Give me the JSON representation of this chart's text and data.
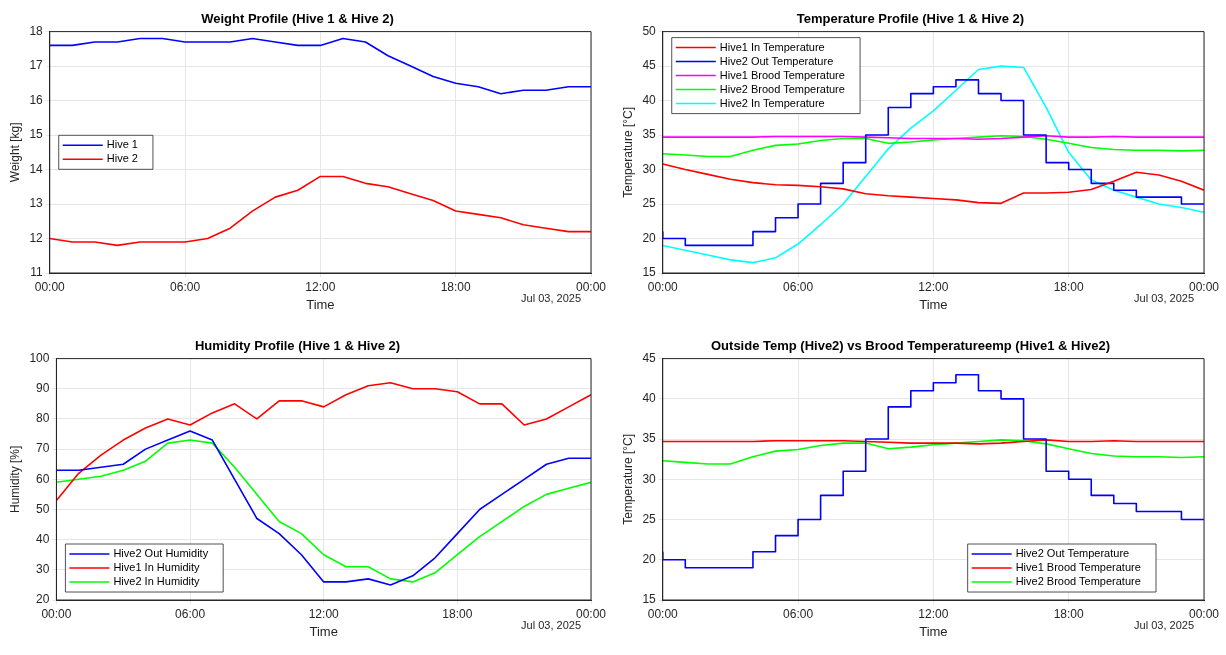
{
  "chart_data": [
    {
      "type": "line",
      "title": "Weight Profile (Hive 1 & Hive 2)",
      "xlabel": "Time",
      "ylabel": "Weight [kg]",
      "annotations": [
        "Jul 03, 2025"
      ],
      "marker": "none",
      "grid": true,
      "legend": "left",
      "x": [
        0,
        1,
        2,
        3,
        4,
        5,
        6,
        7,
        8,
        9,
        10,
        11,
        12,
        13,
        14,
        15,
        16,
        17,
        18,
        19,
        20,
        21,
        22,
        23,
        24
      ],
      "xlim": [
        0,
        24
      ],
      "xticks": [
        {
          "value": 0,
          "label": "00:00"
        },
        {
          "value": 6,
          "label": "06:00"
        },
        {
          "value": 12,
          "label": "12:00"
        },
        {
          "value": 18,
          "label": "18:00"
        },
        {
          "value": 24,
          "label": "00:00"
        }
      ],
      "ylim": [
        11,
        18
      ],
      "yticks": [
        11,
        12,
        13,
        14,
        15,
        16,
        17,
        18
      ],
      "series": [
        {
          "name": "Hive 1",
          "color": "#0000ff",
          "values": [
            17.6,
            17.6,
            17.7,
            17.7,
            17.8,
            17.8,
            17.7,
            17.7,
            17.7,
            17.8,
            17.7,
            17.6,
            17.6,
            17.8,
            17.7,
            17.3,
            17.0,
            16.7,
            16.5,
            16.4,
            16.2,
            16.3,
            16.3,
            16.4,
            16.4
          ]
        },
        {
          "name": "Hive 2",
          "color": "#ff0000",
          "values": [
            12.0,
            11.9,
            11.9,
            11.8,
            11.9,
            11.9,
            11.9,
            12.0,
            12.3,
            12.8,
            13.2,
            13.4,
            13.8,
            13.8,
            13.6,
            13.5,
            13.3,
            13.1,
            12.8,
            12.7,
            12.6,
            12.4,
            12.3,
            12.2,
            12.2
          ]
        }
      ]
    },
    {
      "type": "line",
      "title": "Temperature Profile (Hive 1 & Hive 2)",
      "xlabel": "Time",
      "ylabel": "Temperature [°C]",
      "annotations": [
        "Jul 03, 2025"
      ],
      "marker": "none",
      "grid": true,
      "legend": "top left",
      "x": [
        0,
        1,
        2,
        3,
        4,
        5,
        6,
        7,
        8,
        9,
        10,
        11,
        12,
        13,
        14,
        15,
        16,
        17,
        18,
        19,
        20,
        21,
        22,
        23,
        24
      ],
      "xlim": [
        0,
        24
      ],
      "xticks": [
        {
          "value": 0,
          "label": "00:00"
        },
        {
          "value": 6,
          "label": "06:00"
        },
        {
          "value": 12,
          "label": "12:00"
        },
        {
          "value": 18,
          "label": "18:00"
        },
        {
          "value": 24,
          "label": "00:00"
        }
      ],
      "ylim": [
        15,
        50
      ],
      "yticks": [
        15,
        20,
        25,
        30,
        35,
        40,
        45,
        50
      ],
      "series": [
        {
          "name": "Hive1 In Temperature",
          "color": "#ff0000",
          "values": [
            30.8,
            30.0,
            29.3,
            28.6,
            28.1,
            27.8,
            27.7,
            27.5,
            27.2,
            26.5,
            26.2,
            26.0,
            25.8,
            25.6,
            25.2,
            25.1,
            26.6,
            26.6,
            26.7,
            27.1,
            28.3,
            29.6,
            29.2,
            28.3,
            27.0
          ]
        },
        {
          "name": "Hive2 Out Temperature",
          "type": "step",
          "color": "#0000ff",
          "values": [
            21,
            20,
            19,
            19,
            19,
            21,
            23,
            25,
            28,
            31,
            35,
            39,
            41,
            42,
            43,
            41,
            40,
            35,
            31,
            30,
            28,
            27,
            26,
            26,
            25
          ]
        },
        {
          "name": "Hive1 Brood Temperature",
          "color": "#ff00ff",
          "values": [
            34.7,
            34.7,
            34.7,
            34.7,
            34.7,
            34.8,
            34.8,
            34.8,
            34.8,
            34.7,
            34.6,
            34.5,
            34.5,
            34.5,
            34.4,
            34.5,
            34.7,
            34.9,
            34.7,
            34.7,
            34.8,
            34.7,
            34.7,
            34.7,
            34.7
          ]
        },
        {
          "name": "Hive2 Brood Temperature",
          "color": "#00ff00",
          "values": [
            32.3,
            32.1,
            31.9,
            31.9,
            32.8,
            33.5,
            33.7,
            34.2,
            34.5,
            34.5,
            33.8,
            34.0,
            34.3,
            34.5,
            34.7,
            34.9,
            34.8,
            34.4,
            33.8,
            33.2,
            32.9,
            32.8,
            32.8,
            32.7,
            32.8
          ]
        },
        {
          "name": "Hive2 In Temperature",
          "color": "#00ffff",
          "values": [
            19.0,
            18.3,
            17.6,
            16.9,
            16.5,
            17.2,
            19.2,
            22.0,
            25.0,
            29.0,
            33.0,
            36.0,
            38.5,
            41.5,
            44.5,
            45.0,
            44.8,
            39.0,
            32.5,
            28.5,
            27.0,
            26.0,
            25.0,
            24.5,
            23.8
          ]
        }
      ]
    },
    {
      "type": "line",
      "title": "Humidity Profile (Hive 1 & Hive 2)",
      "xlabel": "Time",
      "ylabel": "Humidity [%]",
      "annotations": [
        "Jul 03, 2025"
      ],
      "marker": "none",
      "grid": true,
      "legend": "bottom left",
      "x": [
        0,
        1,
        2,
        3,
        4,
        5,
        6,
        7,
        8,
        9,
        10,
        11,
        12,
        13,
        14,
        15,
        16,
        17,
        18,
        19,
        20,
        21,
        22,
        23,
        24
      ],
      "xlim": [
        0,
        24
      ],
      "xticks": [
        {
          "value": 0,
          "label": "00:00"
        },
        {
          "value": 6,
          "label": "06:00"
        },
        {
          "value": 12,
          "label": "12:00"
        },
        {
          "value": 18,
          "label": "18:00"
        },
        {
          "value": 24,
          "label": "00:00"
        }
      ],
      "ylim": [
        20,
        100
      ],
      "yticks": [
        20,
        30,
        40,
        50,
        60,
        70,
        80,
        90,
        100
      ],
      "series": [
        {
          "name": "Hive2 Out Humidity",
          "color": "#0000ff",
          "values": [
            63,
            63,
            64,
            65,
            70,
            73,
            76,
            73,
            60,
            47,
            42,
            35,
            26,
            26,
            27,
            25,
            28,
            34,
            42,
            50,
            55,
            60,
            65,
            67,
            67
          ]
        },
        {
          "name": "Hive1 In Humidity",
          "color": "#ff0000",
          "values": [
            53,
            62,
            68,
            73,
            77,
            80,
            78,
            82,
            85,
            80,
            86,
            86,
            84,
            88,
            91,
            92,
            90,
            90,
            89,
            85,
            85,
            78,
            80,
            84,
            88
          ]
        },
        {
          "name": "Hive2 In Humidity",
          "color": "#00ff00",
          "values": [
            59,
            60,
            61,
            63,
            66,
            72,
            73,
            72,
            64,
            55,
            46,
            42,
            35,
            31,
            31,
            27,
            26,
            29,
            35,
            41,
            46,
            51,
            55,
            57,
            59
          ]
        }
      ]
    },
    {
      "type": "line",
      "title": "Outside Temp (Hive2) vs Brood Temperatureemp (Hive1 & Hive2)",
      "xlabel": "Time",
      "ylabel": "Temperature [°C]",
      "annotations": [
        "Jul 03, 2025"
      ],
      "marker": "none",
      "grid": true,
      "legend": "bottom right",
      "x": [
        0,
        1,
        2,
        3,
        4,
        5,
        6,
        7,
        8,
        9,
        10,
        11,
        12,
        13,
        14,
        15,
        16,
        17,
        18,
        19,
        20,
        21,
        22,
        23,
        24
      ],
      "xlim": [
        0,
        24
      ],
      "xticks": [
        {
          "value": 0,
          "label": "00:00"
        },
        {
          "value": 6,
          "label": "06:00"
        },
        {
          "value": 12,
          "label": "12:00"
        },
        {
          "value": 18,
          "label": "18:00"
        },
        {
          "value": 24,
          "label": "00:00"
        }
      ],
      "ylim": [
        15,
        45
      ],
      "yticks": [
        15,
        20,
        25,
        30,
        35,
        40,
        45
      ],
      "series": [
        {
          "name": "Hive2 Out Temperature",
          "type": "step",
          "color": "#0000ff",
          "values": [
            21,
            20,
            19,
            19,
            19,
            21,
            23,
            25,
            28,
            31,
            35,
            39,
            41,
            42,
            43,
            41,
            40,
            35,
            31,
            30,
            28,
            27,
            26,
            26,
            25
          ]
        },
        {
          "name": "Hive1 Brood Temperature",
          "color": "#ff0000",
          "values": [
            34.7,
            34.7,
            34.7,
            34.7,
            34.7,
            34.8,
            34.8,
            34.8,
            34.8,
            34.7,
            34.6,
            34.5,
            34.5,
            34.5,
            34.4,
            34.5,
            34.7,
            34.9,
            34.7,
            34.7,
            34.8,
            34.7,
            34.7,
            34.7,
            34.7
          ]
        },
        {
          "name": "Hive2 Brood Temperature",
          "color": "#00ff00",
          "values": [
            32.3,
            32.1,
            31.9,
            31.9,
            32.8,
            33.5,
            33.7,
            34.2,
            34.5,
            34.5,
            33.8,
            34.0,
            34.3,
            34.5,
            34.7,
            34.9,
            34.8,
            34.4,
            33.8,
            33.2,
            32.9,
            32.8,
            32.8,
            32.7,
            32.8
          ]
        }
      ]
    }
  ]
}
